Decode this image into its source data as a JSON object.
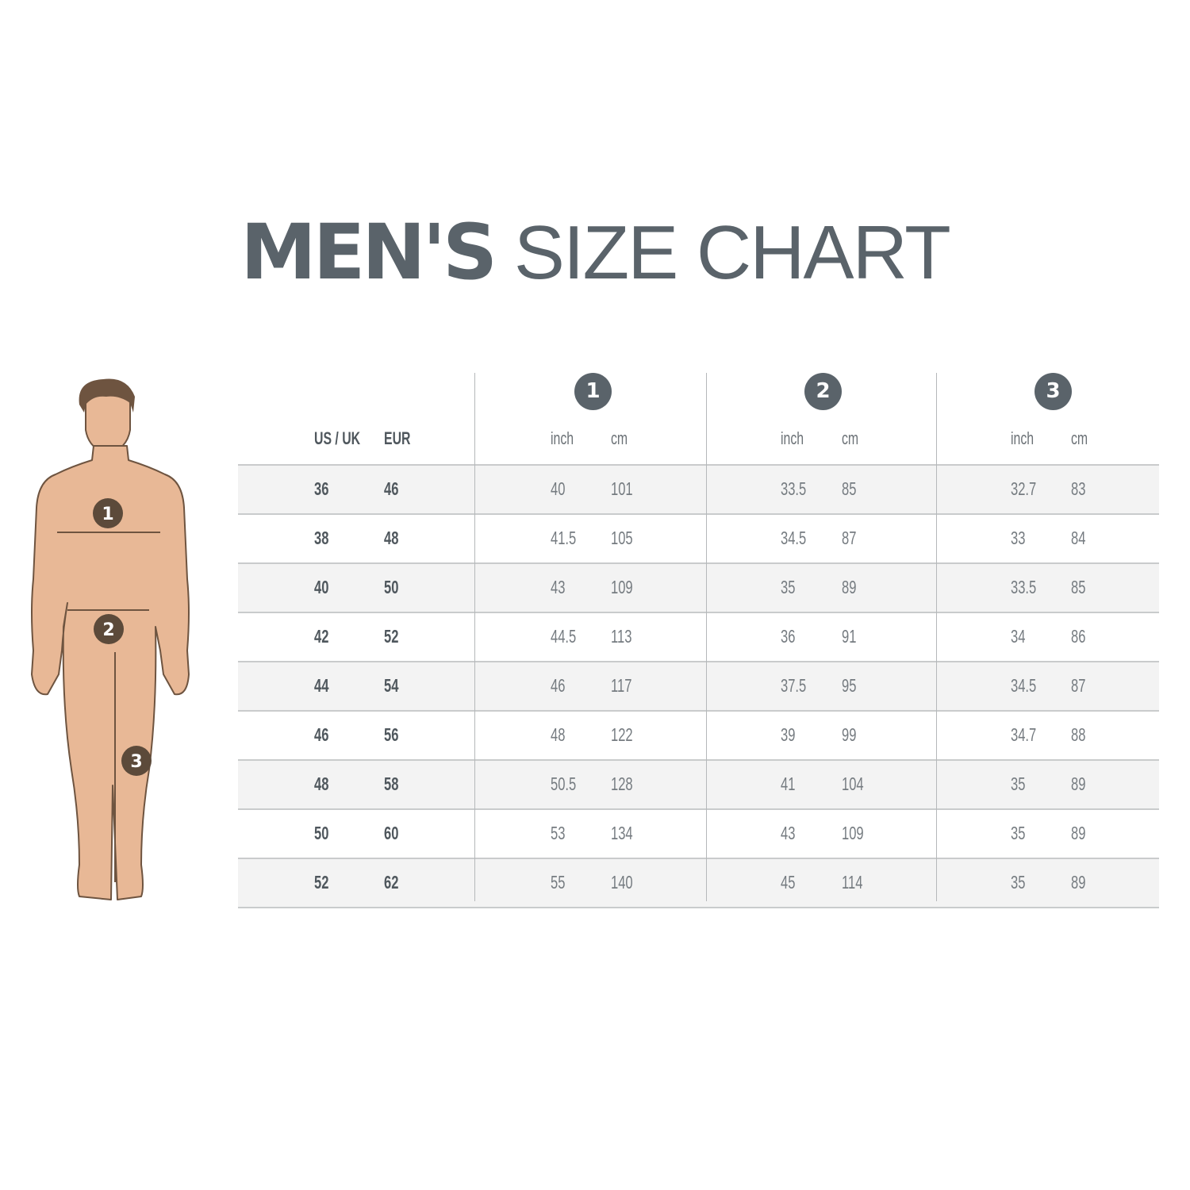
{
  "title": {
    "bold": "MEN'S",
    "light": "SIZE CHART"
  },
  "colors": {
    "text": "#5a636a",
    "skin": "#e8b896",
    "outline": "#6e5440",
    "marker": "#5c4a3a",
    "stripe": "#f3f3f3"
  },
  "figure": {
    "markers": [
      "1",
      "2",
      "3"
    ]
  },
  "table": {
    "size_headers": [
      "US / UK",
      "EUR"
    ],
    "groups": [
      {
        "number": "1",
        "units": [
          "inch",
          "cm"
        ]
      },
      {
        "number": "2",
        "units": [
          "inch",
          "cm"
        ]
      },
      {
        "number": "3",
        "units": [
          "inch",
          "cm"
        ]
      }
    ],
    "rows": [
      {
        "us_uk": "36",
        "eur": "46",
        "m1": [
          "40",
          "101"
        ],
        "m2": [
          "33.5",
          "85"
        ],
        "m3": [
          "32.7",
          "83"
        ]
      },
      {
        "us_uk": "38",
        "eur": "48",
        "m1": [
          "41.5",
          "105"
        ],
        "m2": [
          "34.5",
          "87"
        ],
        "m3": [
          "33",
          "84"
        ]
      },
      {
        "us_uk": "40",
        "eur": "50",
        "m1": [
          "43",
          "109"
        ],
        "m2": [
          "35",
          "89"
        ],
        "m3": [
          "33.5",
          "85"
        ]
      },
      {
        "us_uk": "42",
        "eur": "52",
        "m1": [
          "44.5",
          "113"
        ],
        "m2": [
          "36",
          "91"
        ],
        "m3": [
          "34",
          "86"
        ]
      },
      {
        "us_uk": "44",
        "eur": "54",
        "m1": [
          "46",
          "117"
        ],
        "m2": [
          "37.5",
          "95"
        ],
        "m3": [
          "34.5",
          "87"
        ]
      },
      {
        "us_uk": "46",
        "eur": "56",
        "m1": [
          "48",
          "122"
        ],
        "m2": [
          "39",
          "99"
        ],
        "m3": [
          "34.7",
          "88"
        ]
      },
      {
        "us_uk": "48",
        "eur": "58",
        "m1": [
          "50.5",
          "128"
        ],
        "m2": [
          "41",
          "104"
        ],
        "m3": [
          "35",
          "89"
        ]
      },
      {
        "us_uk": "50",
        "eur": "60",
        "m1": [
          "53",
          "134"
        ],
        "m2": [
          "43",
          "109"
        ],
        "m3": [
          "35",
          "89"
        ]
      },
      {
        "us_uk": "52",
        "eur": "62",
        "m1": [
          "55",
          "140"
        ],
        "m2": [
          "45",
          "114"
        ],
        "m3": [
          "35",
          "89"
        ]
      }
    ]
  }
}
